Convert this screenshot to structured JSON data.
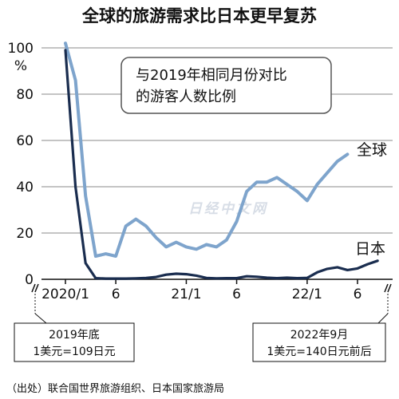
{
  "chart_data": {
    "type": "line",
    "title": "全球的旅游需求比日本更早复苏",
    "yunit": "%",
    "ylim": [
      0,
      100
    ],
    "yticks": [
      0,
      20,
      40,
      60,
      80,
      100
    ],
    "xticks": [
      {
        "month": 1,
        "label": "2020/1"
      },
      {
        "month": 6,
        "label": "6"
      },
      {
        "month": 13,
        "label": "21/1"
      },
      {
        "month": 18,
        "label": "6"
      },
      {
        "month": 25,
        "label": "22/1"
      },
      {
        "month": 30,
        "label": "6"
      }
    ],
    "annotation": "与2019年相同月份对比\n的游客人数比例",
    "series": [
      {
        "name": "全球",
        "color": "#7ea4cc",
        "months": [
          1,
          2,
          3,
          4,
          5,
          6,
          7,
          8,
          9,
          10,
          11,
          12,
          13,
          14,
          15,
          16,
          17,
          18,
          19,
          20,
          21,
          22,
          23,
          24,
          25,
          26,
          27,
          28,
          29,
          30,
          31
        ],
        "values": [
          102,
          86,
          36,
          10,
          11,
          10,
          23,
          26,
          23,
          18,
          14,
          16,
          14,
          13,
          15,
          14,
          17,
          25,
          38,
          42,
          42,
          44,
          41,
          38,
          34,
          41,
          46,
          51,
          54,
          null,
          null
        ]
      },
      {
        "name": "日本",
        "color": "#1a2d4f",
        "months": [
          1,
          2,
          3,
          4,
          5,
          6,
          7,
          8,
          9,
          10,
          11,
          12,
          13,
          14,
          15,
          16,
          17,
          18,
          19,
          20,
          21,
          22,
          23,
          24,
          25,
          26,
          27,
          28,
          29,
          30,
          31,
          32
        ],
        "values": [
          99,
          40,
          7,
          0.5,
          0.3,
          0.3,
          0.3,
          0.4,
          0.6,
          1,
          2,
          2.4,
          2.2,
          1.6,
          0.6,
          0.4,
          0.5,
          0.5,
          1.3,
          1.1,
          0.7,
          0.5,
          0.7,
          0.5,
          0.6,
          3,
          4.5,
          5.2,
          4,
          4.7,
          6.5,
          8
        ]
      }
    ]
  },
  "labels": {
    "left_axis_note_line1": "2019年底",
    "left_axis_note_line2": "1美元=109日元",
    "right_axis_note_line1": "2022年9月",
    "right_axis_note_line2": "1美元=140日元前后",
    "source": "（出处）联合国世界旅游组织、日本国家旅游局",
    "watermark": "日经中文网"
  }
}
